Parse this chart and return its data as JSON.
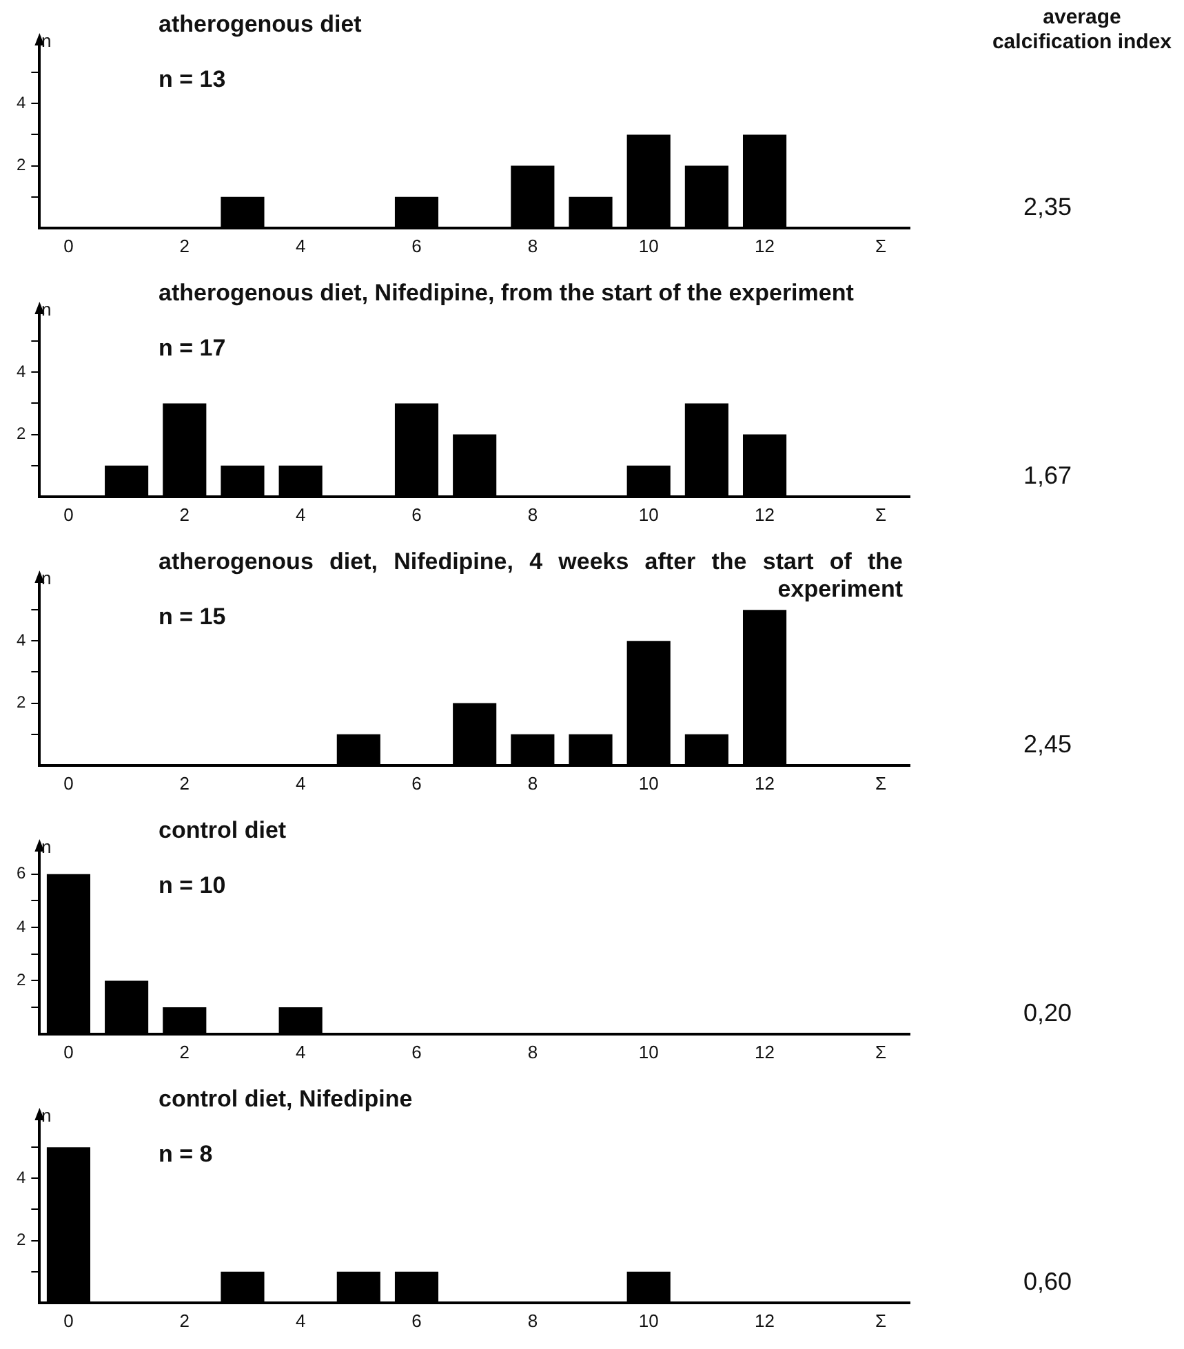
{
  "chart_data": [
    {
      "type": "bar",
      "title": "atherogenous diet",
      "ylabel": "n",
      "categories": [
        "0",
        null,
        "2",
        null,
        "4",
        null,
        "6",
        null,
        "8",
        null,
        "10",
        null,
        "12",
        null,
        "Σ"
      ],
      "values": [
        null,
        null,
        null,
        1,
        null,
        null,
        1,
        null,
        2,
        1,
        3,
        2,
        3,
        null,
        null
      ],
      "color": "#000000",
      "ylim": [
        0,
        6
      ],
      "yticks": [
        {
          "value": 1,
          "label": null
        },
        2,
        {
          "value": 3,
          "label": null
        },
        4,
        {
          "value": 5,
          "label": null
        }
      ],
      "legend": false,
      "grid": false,
      "annotations": [
        "n = 13",
        "average calcification index",
        "2,35"
      ]
    },
    {
      "type": "bar",
      "title": "atherogenous diet, Nifedipine, from the start of the experiment",
      "ylabel": "n",
      "categories": [
        "0",
        null,
        "2",
        null,
        "4",
        null,
        "6",
        null,
        "8",
        null,
        "10",
        null,
        "12",
        null,
        "Σ"
      ],
      "values": [
        null,
        1,
        3,
        1,
        1,
        null,
        3,
        2,
        null,
        null,
        1,
        3,
        2,
        null,
        null
      ],
      "color": "#000000",
      "ylim": [
        0,
        6
      ],
      "yticks": [
        {
          "value": 1,
          "label": null
        },
        2,
        {
          "value": 3,
          "label": null
        },
        4,
        {
          "value": 5,
          "label": null
        }
      ],
      "legend": false,
      "grid": false,
      "annotations": [
        "n = 17",
        "1,67"
      ]
    },
    {
      "type": "bar",
      "title": "atherogenous diet, Nifedipine, 4 weeks after the start of the experiment",
      "ylabel": "n",
      "categories": [
        "0",
        null,
        "2",
        null,
        "4",
        null,
        "6",
        null,
        "8",
        null,
        "10",
        null,
        "12",
        null,
        "Σ"
      ],
      "values": [
        null,
        null,
        null,
        null,
        null,
        1,
        null,
        2,
        1,
        1,
        4,
        1,
        5,
        null,
        null
      ],
      "color": "#000000",
      "ylim": [
        0,
        6
      ],
      "yticks": [
        {
          "value": 1,
          "label": null
        },
        2,
        {
          "value": 3,
          "label": null
        },
        4,
        {
          "value": 5,
          "label": null
        }
      ],
      "legend": false,
      "grid": false,
      "annotations": [
        "n = 15",
        "2,45"
      ]
    },
    {
      "type": "bar",
      "title": "control diet",
      "ylabel": "n",
      "categories": [
        "0",
        null,
        "2",
        null,
        "4",
        null,
        "6",
        null,
        "8",
        null,
        "10",
        null,
        "12",
        null,
        "Σ"
      ],
      "values": [
        6,
        2,
        1,
        null,
        1,
        null,
        null,
        null,
        null,
        null,
        null,
        null,
        null,
        null,
        null
      ],
      "color": "#000000",
      "ylim": [
        0,
        7
      ],
      "yticks": [
        {
          "value": 1,
          "label": null
        },
        2,
        {
          "value": 3,
          "label": null
        },
        4,
        {
          "value": 5,
          "label": null
        },
        6
      ],
      "legend": false,
      "grid": false,
      "annotations": [
        "n = 10",
        "0,20"
      ]
    },
    {
      "type": "bar",
      "title": "control diet, Nifedipine",
      "ylabel": "n",
      "categories": [
        "0",
        null,
        "2",
        null,
        "4",
        null,
        "6",
        null,
        "8",
        null,
        "10",
        null,
        "12",
        null,
        "Σ"
      ],
      "values": [
        5,
        null,
        null,
        1,
        null,
        1,
        1,
        null,
        null,
        null,
        1,
        null,
        null,
        null,
        null
      ],
      "color": "#000000",
      "ylim": [
        0,
        6
      ],
      "yticks": [
        {
          "value": 1,
          "label": null
        },
        2,
        {
          "value": 3,
          "label": null
        },
        4,
        {
          "value": 5,
          "label": null
        }
      ],
      "legend": false,
      "grid": false,
      "annotations": [
        "n = 8",
        "0,60"
      ]
    }
  ]
}
